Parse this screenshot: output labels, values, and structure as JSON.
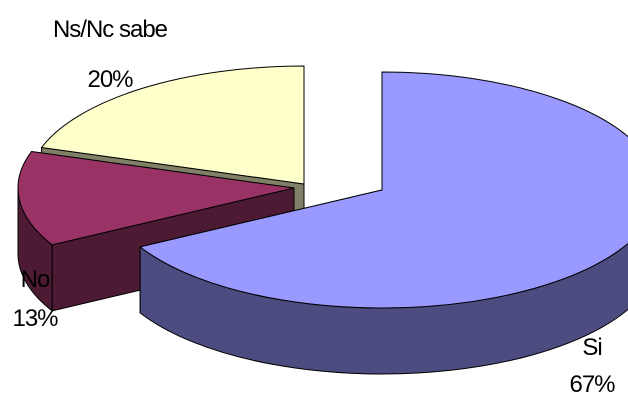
{
  "chart_data": {
    "type": "pie",
    "style": "3d-exploded",
    "title": "",
    "slices": [
      {
        "label": "Si",
        "value": 67,
        "value_label": "67%",
        "top_color": "#9999FF",
        "side_color": "#4C4C80"
      },
      {
        "label": "No",
        "value": 13,
        "value_label": "13%",
        "top_color": "#993366",
        "side_color": "#4C1A33"
      },
      {
        "label": "Ns/Nc sabe",
        "value": 20,
        "value_label": "20%",
        "top_color": "#FFFFCC",
        "side_color": "#808066"
      }
    ],
    "legend": "none",
    "grid": false
  }
}
